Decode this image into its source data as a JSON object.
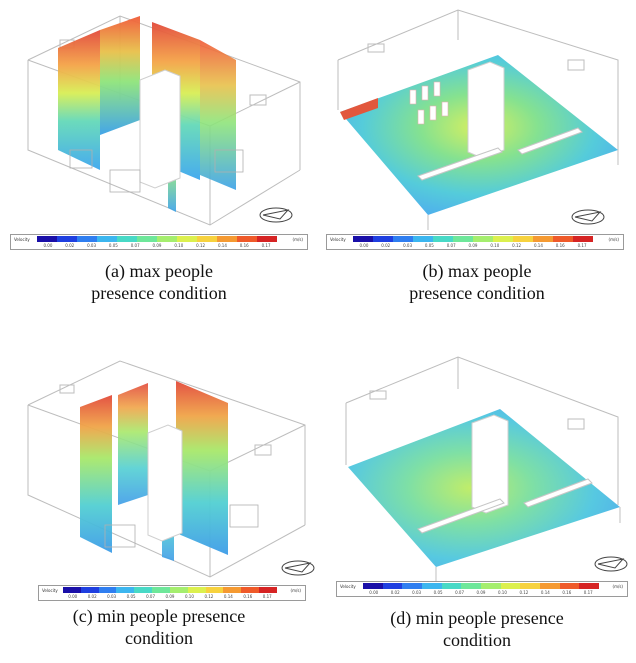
{
  "legend": {
    "label": "Velocity",
    "unit": "(m/s)",
    "ticks": [
      "0.00",
      "0.02",
      "0.03",
      "0.05",
      "0.07",
      "0.09",
      "0.10",
      "0.12",
      "0.14",
      "0.16",
      "0.17"
    ],
    "colors": [
      "#1a0fa8",
      "#1f3fe0",
      "#2f7ef0",
      "#3cb6ef",
      "#48d9c6",
      "#6ee79a",
      "#a5ee6e",
      "#dcf04e",
      "#f7d23e",
      "#f59a32",
      "#ef5a2a",
      "#d62424"
    ]
  },
  "panels": [
    {
      "id": "a",
      "line1": "(a) max people",
      "line2": "presence condition"
    },
    {
      "id": "b",
      "line1": "(b) max people",
      "line2": "presence condition"
    },
    {
      "id": "c",
      "line1": "(c) min people presence",
      "line2": "condition"
    },
    {
      "id": "d",
      "line1": "(d) min people presence",
      "line2": "condition"
    }
  ]
}
